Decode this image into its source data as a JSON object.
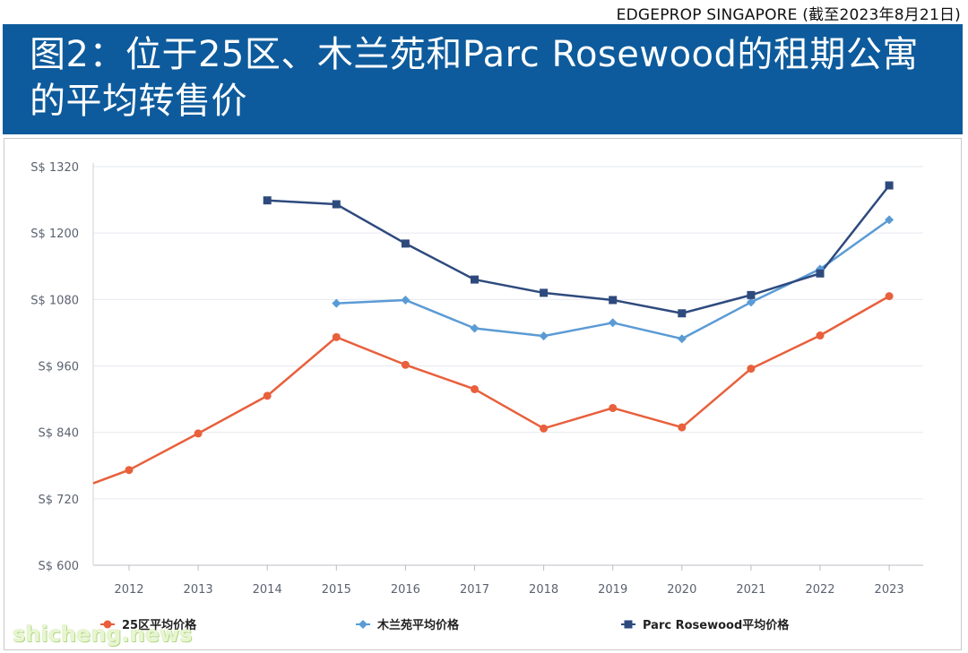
{
  "source": "EDGEPROP SINGAPORE (截至2023年8月21日)",
  "title": "图2：位于25区、木兰苑和Parc Rosewood的租期公寓的平均转售价",
  "watermark": "shicheng.news",
  "colors": {
    "banner": "#0d5b9c",
    "series": [
      "#e8603c",
      "#5b9bd5",
      "#2e4a7d"
    ]
  },
  "chart_data": {
    "type": "line",
    "title": "",
    "xlabel": "",
    "ylabel": "",
    "x": [
      "2012",
      "2013",
      "2014",
      "2015",
      "2016",
      "2017",
      "2018",
      "2019",
      "2020",
      "2021",
      "2022",
      "2023"
    ],
    "y_ticks": [
      "S$ 1320",
      "S$ 1200",
      "S$ 1080",
      "S$ 960",
      "S$ 840",
      "S$ 720",
      "S$ 600"
    ],
    "ylim": [
      600,
      1320
    ],
    "grid": true,
    "legend_position": "bottom",
    "series": [
      {
        "name": "25区平均价格",
        "marker": "circle",
        "leading_value": 748,
        "values": [
          772,
          838,
          906,
          1012,
          962,
          918,
          847,
          884,
          849,
          955,
          1015,
          1086
        ]
      },
      {
        "name": "木兰苑平均价格",
        "marker": "diamond",
        "values": [
          null,
          null,
          null,
          1073,
          1079,
          1028,
          1014,
          1038,
          1009,
          1075,
          1135,
          1224
        ]
      },
      {
        "name": "Parc Rosewood平均价格",
        "marker": "square",
        "values": [
          null,
          null,
          1259,
          1252,
          1181,
          1116,
          1092,
          1079,
          1055,
          1088,
          1127,
          1286
        ]
      }
    ]
  }
}
